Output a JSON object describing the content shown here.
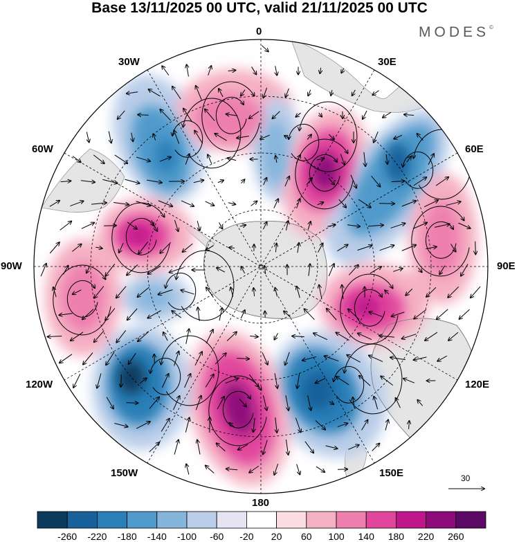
{
  "title": "Base 13/11/2025 00 UTC, valid 21/11/2025 00 UTC",
  "logo": "MODES",
  "logo_mark": "©",
  "longitude_labels": {
    "top": "0",
    "bottom": "180",
    "left": "90W",
    "right": "90E",
    "w30": "30W",
    "e30": "30E",
    "w60": "60W",
    "e60": "60E",
    "w120": "120W",
    "e120": "120E",
    "w150": "150W",
    "e150": "150E"
  },
  "reference_vector": {
    "label": "30",
    "value": 30
  },
  "colorbar": {
    "labels": [
      "-260",
      "-220",
      "-180",
      "-140",
      "-100",
      "-60",
      "-20",
      "20",
      "60",
      "100",
      "140",
      "180",
      "220",
      "260"
    ],
    "colors": [
      "#0d3b5e",
      "#17609a",
      "#2a7fb8",
      "#4f9acb",
      "#86b5db",
      "#b9cde9",
      "#e4e4f2",
      "#ffffff",
      "#fbdde3",
      "#f5b1c4",
      "#ed7fae",
      "#e1469d",
      "#c0168c",
      "#8d0b7a",
      "#5c0a66"
    ]
  },
  "anomalies": [
    {
      "name": "anomaly-low-south-atlantic-west",
      "value": -150
    },
    {
      "name": "anomaly-high-south-atlantic",
      "value": 90
    },
    {
      "name": "anomaly-low-south-atlantic-east",
      "value": -110
    },
    {
      "name": "anomaly-high-south-africa",
      "value": 240
    },
    {
      "name": "anomaly-low-indian-ocean-west",
      "value": -220
    },
    {
      "name": "anomaly-high-indian-ocean-east",
      "value": 110
    },
    {
      "name": "anomaly-high-south-australia",
      "value": 200
    },
    {
      "name": "anomaly-low-tasman",
      "value": -230
    },
    {
      "name": "anomaly-high-pacific-180",
      "value": 250
    },
    {
      "name": "anomaly-low-south-pacific",
      "value": -240
    },
    {
      "name": "anomaly-high-south-pacific-east",
      "value": 140
    },
    {
      "name": "anomaly-low-amundsen",
      "value": -90
    },
    {
      "name": "anomaly-high-drake-passage",
      "value": 200
    }
  ]
}
